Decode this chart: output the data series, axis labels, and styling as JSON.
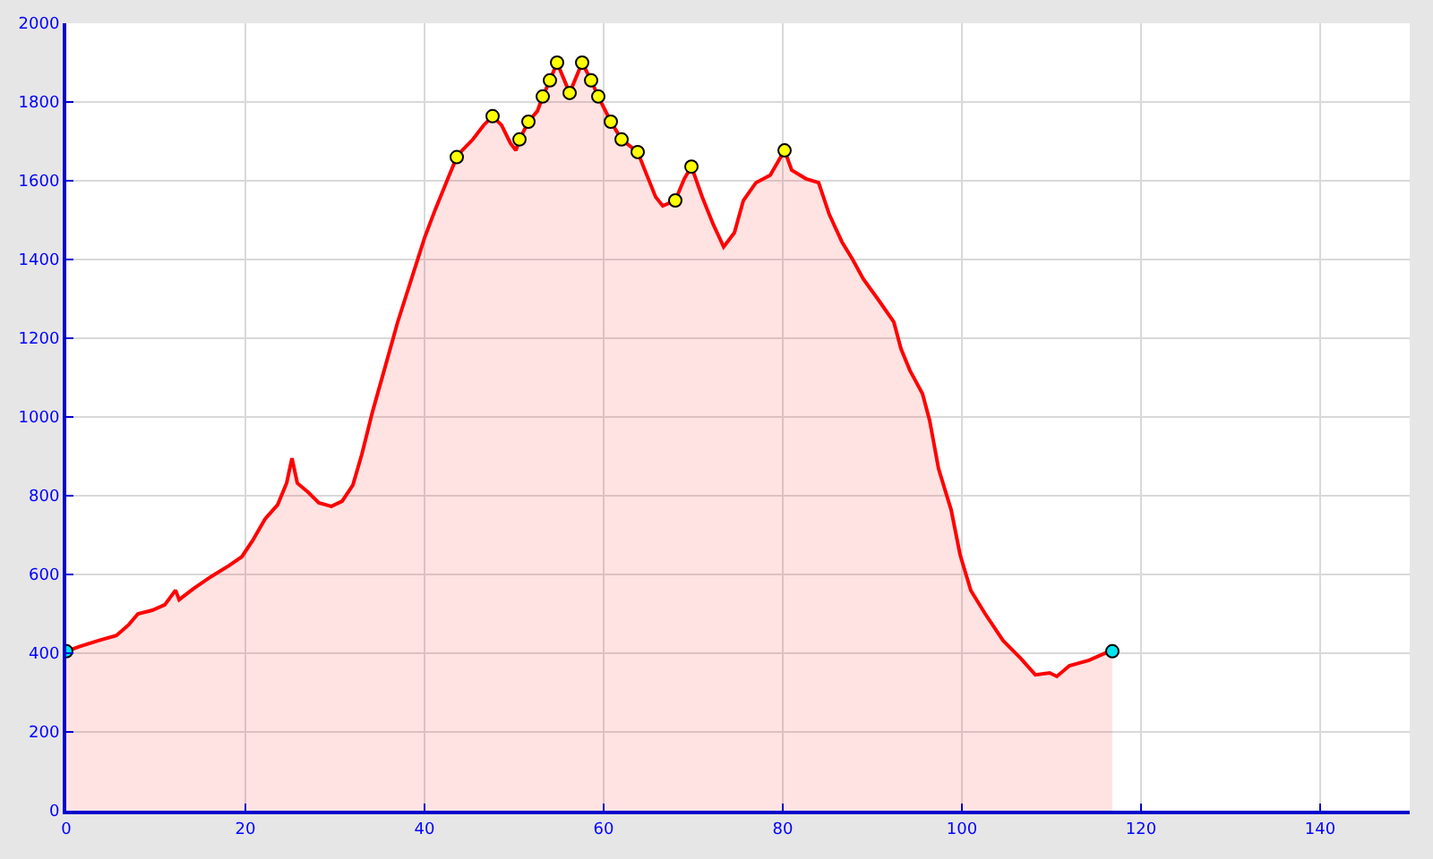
{
  "chart_data": {
    "type": "area",
    "xlim": [
      0,
      150
    ],
    "xticks": [
      0,
      20,
      40,
      60,
      80,
      100,
      120,
      140
    ],
    "ylim": [
      0,
      2000
    ],
    "yticks": [
      0,
      200,
      400,
      600,
      800,
      1000,
      1200,
      1400,
      1600,
      1800,
      2000
    ],
    "grid": true,
    "legend": false,
    "series": [
      {
        "color": "#ff0000",
        "marker": "none",
        "x": [
          0,
          1.6,
          3.6,
          5.6,
          7,
          8,
          9.6,
          11,
          12.2,
          12.6,
          14.2,
          16.2,
          18.2,
          19.6,
          20.8,
          22.2,
          23.6,
          24.6,
          25.2,
          25.8,
          27,
          28.2,
          29.6,
          30.8,
          32,
          33,
          34.2,
          35.6,
          37,
          38.6,
          40,
          41.2,
          42.6,
          43.6,
          44.2,
          45.4,
          46.6,
          47.6,
          48.6,
          49.6,
          50.2,
          50.6,
          51.6,
          52.6,
          53.2,
          54,
          54.8,
          56.2,
          57.6,
          58.6,
          59.4,
          60.8,
          62,
          63.8,
          64.6,
          65.8,
          66.6,
          68,
          69,
          69.8,
          71,
          72.2,
          73.4,
          74.6,
          75.6,
          77,
          78.6,
          80.2,
          81,
          82.6,
          84,
          85.2,
          86.6,
          87.8,
          89,
          90.6,
          92.4,
          93.2,
          94.2,
          95.6,
          96.4,
          97.4,
          98.8,
          99.8,
          101,
          102.6,
          104.6,
          106.6,
          108.2,
          109.8,
          110.6,
          112,
          114.2,
          116,
          116.8
        ],
        "values": [
          405,
          418,
          432,
          445,
          473,
          500,
          509,
          523,
          560,
          536,
          564,
          595,
          623,
          645,
          686,
          741,
          777,
          832,
          895,
          832,
          809,
          782,
          773,
          786,
          827,
          905,
          1014,
          1127,
          1241,
          1355,
          1455,
          1527,
          1605,
          1660,
          1677,
          1705,
          1741,
          1764,
          1741,
          1695,
          1677,
          1705,
          1750,
          1777,
          1814,
          1855,
          1900,
          1823,
          1900,
          1855,
          1814,
          1750,
          1705,
          1673,
          1627,
          1559,
          1536,
          1550,
          1605,
          1636,
          1559,
          1491,
          1432,
          1468,
          1550,
          1595,
          1614,
          1677,
          1627,
          1605,
          1595,
          1514,
          1445,
          1400,
          1350,
          1300,
          1241,
          1173,
          1118,
          1059,
          991,
          868,
          764,
          650,
          559,
          500,
          432,
          386,
          345,
          350,
          341,
          368,
          382,
          400,
          405
        ]
      },
      {
        "type": "scatter",
        "color": "#ffff00",
        "marker": "circle",
        "x": [
          43.6,
          47.6,
          50.6,
          51.6,
          53.2,
          54,
          54.8,
          56.2,
          57.6,
          58.6,
          59.4,
          60.8,
          62,
          63.8,
          68,
          69.8,
          80.2
        ],
        "values": [
          1660,
          1764,
          1705,
          1750,
          1814,
          1855,
          1900,
          1823,
          1900,
          1855,
          1814,
          1750,
          1705,
          1673,
          1550,
          1636,
          1677
        ]
      },
      {
        "type": "scatter",
        "color": "#00e5ee",
        "marker": "circle",
        "x": [
          0,
          116.8
        ],
        "values": [
          405,
          405
        ]
      }
    ]
  }
}
